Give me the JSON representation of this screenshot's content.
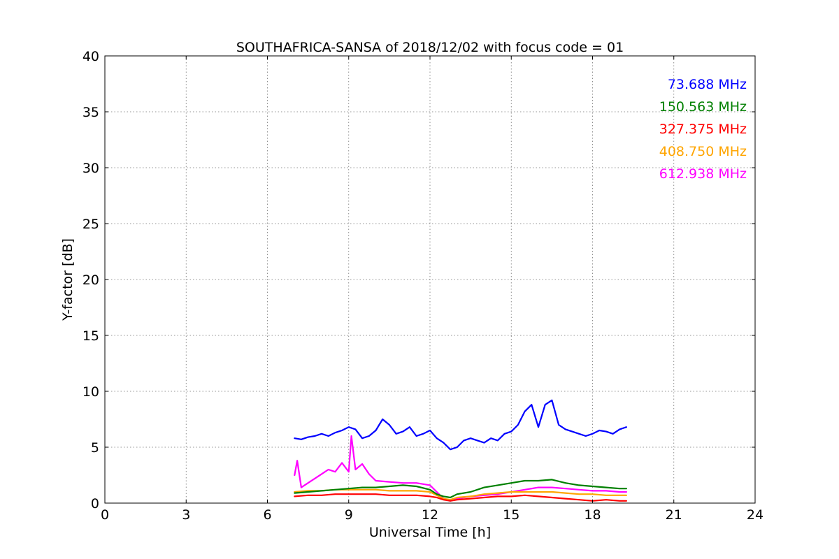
{
  "chart_data": {
    "type": "line",
    "title": "SOUTHAFRICA-SANSA of 2018/12/02 with focus code = 01",
    "xlabel": "Universal Time [h]",
    "ylabel": "Y-factor [dB]",
    "xlim": [
      0,
      24
    ],
    "ylim": [
      0,
      40
    ],
    "xticks": [
      0,
      3,
      6,
      9,
      12,
      15,
      18,
      21,
      24
    ],
    "yticks": [
      0,
      5,
      10,
      15,
      20,
      25,
      30,
      35,
      40
    ],
    "grid": true,
    "legend_position": "top-right",
    "series": [
      {
        "name": "73.688 MHz",
        "color": "#0000ff",
        "x": [
          7.0,
          7.25,
          7.5,
          7.75,
          8.0,
          8.25,
          8.5,
          8.75,
          9.0,
          9.25,
          9.5,
          9.75,
          10.0,
          10.25,
          10.5,
          10.75,
          11.0,
          11.25,
          11.5,
          11.75,
          12.0,
          12.25,
          12.5,
          12.75,
          13.0,
          13.25,
          13.5,
          13.75,
          14.0,
          14.25,
          14.5,
          14.75,
          15.0,
          15.25,
          15.5,
          15.75,
          16.0,
          16.25,
          16.5,
          16.75,
          17.0,
          17.25,
          17.5,
          17.75,
          18.0,
          18.25,
          18.5,
          18.75,
          19.0,
          19.25
        ],
        "y": [
          5.8,
          5.7,
          5.9,
          6.0,
          6.2,
          6.0,
          6.3,
          6.5,
          6.8,
          6.6,
          5.8,
          6.0,
          6.5,
          7.5,
          7.0,
          6.2,
          6.4,
          6.8,
          6.0,
          6.2,
          6.5,
          5.8,
          5.4,
          4.8,
          5.0,
          5.6,
          5.8,
          5.6,
          5.4,
          5.8,
          5.6,
          6.2,
          6.4,
          7.0,
          8.2,
          8.8,
          6.8,
          8.8,
          9.2,
          7.0,
          6.6,
          6.4,
          6.2,
          6.0,
          6.2,
          6.5,
          6.4,
          6.2,
          6.6,
          6.8
        ]
      },
      {
        "name": "150.563 MHz",
        "color": "#008000",
        "x": [
          7.0,
          7.5,
          8.0,
          8.5,
          9.0,
          9.5,
          10.0,
          10.5,
          11.0,
          11.5,
          12.0,
          12.25,
          12.5,
          12.75,
          13.0,
          13.5,
          14.0,
          14.5,
          15.0,
          15.5,
          16.0,
          16.5,
          17.0,
          17.5,
          18.0,
          18.5,
          19.0,
          19.25
        ],
        "y": [
          0.9,
          1.0,
          1.1,
          1.2,
          1.3,
          1.4,
          1.4,
          1.5,
          1.6,
          1.5,
          1.2,
          0.8,
          0.6,
          0.5,
          0.8,
          1.0,
          1.4,
          1.6,
          1.8,
          2.0,
          2.0,
          2.1,
          1.8,
          1.6,
          1.5,
          1.4,
          1.3,
          1.3
        ]
      },
      {
        "name": "327.375 MHz",
        "color": "#ff0000",
        "x": [
          7.0,
          7.5,
          8.0,
          8.5,
          9.0,
          9.5,
          10.0,
          10.5,
          11.0,
          11.5,
          12.0,
          12.25,
          12.5,
          12.75,
          13.0,
          13.5,
          14.0,
          14.5,
          15.0,
          15.5,
          16.0,
          16.5,
          17.0,
          17.5,
          18.0,
          18.5,
          19.0,
          19.25
        ],
        "y": [
          0.6,
          0.7,
          0.7,
          0.8,
          0.8,
          0.8,
          0.8,
          0.7,
          0.7,
          0.7,
          0.6,
          0.5,
          0.3,
          0.2,
          0.3,
          0.4,
          0.5,
          0.6,
          0.6,
          0.7,
          0.6,
          0.5,
          0.4,
          0.3,
          0.2,
          0.3,
          0.2,
          0.2
        ]
      },
      {
        "name": "408.750 MHz",
        "color": "#ffa500",
        "x": [
          7.0,
          7.5,
          8.0,
          8.5,
          9.0,
          9.5,
          10.0,
          10.5,
          11.0,
          11.5,
          12.0,
          12.25,
          12.5,
          12.75,
          13.0,
          13.5,
          14.0,
          14.5,
          15.0,
          15.5,
          16.0,
          16.5,
          17.0,
          17.5,
          18.0,
          18.5,
          19.0,
          19.25
        ],
        "y": [
          1.0,
          1.1,
          1.1,
          1.2,
          1.2,
          1.2,
          1.2,
          1.1,
          1.1,
          1.1,
          1.0,
          0.7,
          0.4,
          0.3,
          0.5,
          0.6,
          0.8,
          0.9,
          1.0,
          1.0,
          1.0,
          1.0,
          0.9,
          0.8,
          0.8,
          0.7,
          0.7,
          0.7
        ]
      },
      {
        "name": "612.938 MHz",
        "color": "#ff00ff",
        "x": [
          7.0,
          7.1,
          7.25,
          7.5,
          7.75,
          8.0,
          8.25,
          8.5,
          8.75,
          9.0,
          9.1,
          9.25,
          9.5,
          9.75,
          10.0,
          10.5,
          11.0,
          11.5,
          12.0,
          12.25,
          12.5,
          12.75,
          13.0,
          13.5,
          14.0,
          14.5,
          15.0,
          15.5,
          16.0,
          16.5,
          17.0,
          17.5,
          18.0,
          18.5,
          19.0,
          19.25
        ],
        "y": [
          2.5,
          3.8,
          1.4,
          1.8,
          2.2,
          2.6,
          3.0,
          2.8,
          3.6,
          2.8,
          6.0,
          3.0,
          3.5,
          2.6,
          2.0,
          1.9,
          1.8,
          1.8,
          1.6,
          1.0,
          0.4,
          0.2,
          0.4,
          0.6,
          0.7,
          0.8,
          1.0,
          1.2,
          1.4,
          1.4,
          1.3,
          1.2,
          1.1,
          1.1,
          1.0,
          1.0
        ]
      }
    ]
  }
}
